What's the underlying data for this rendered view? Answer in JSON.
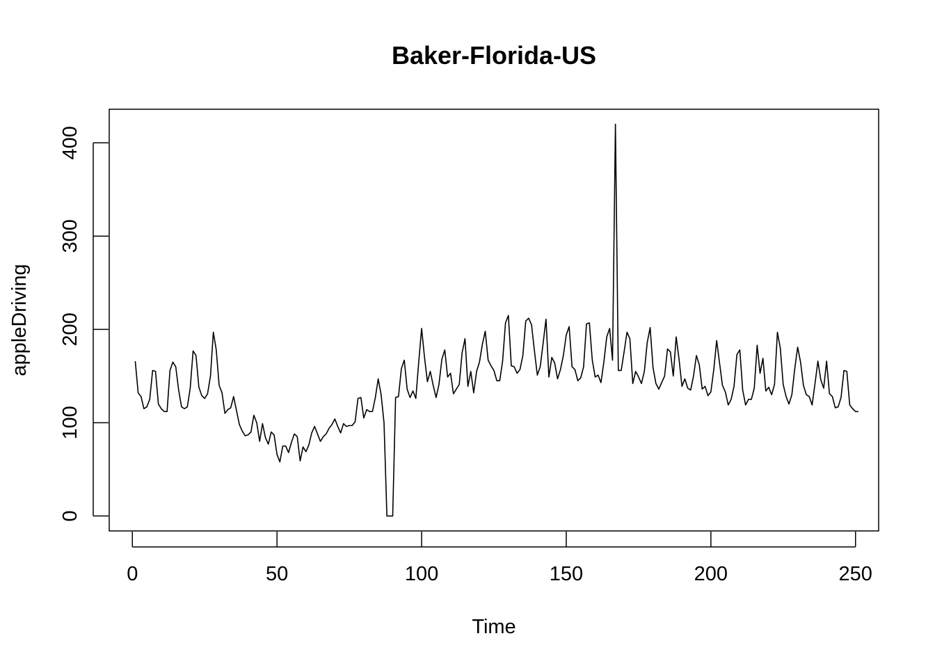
{
  "chart_data": {
    "type": "line",
    "title": "Baker-Florida-US",
    "xlabel": "Time",
    "ylabel": "appleDriving",
    "xlim": [
      -8,
      258
    ],
    "ylim": [
      -16,
      436
    ],
    "x_ticks": [
      0,
      50,
      100,
      150,
      200,
      250
    ],
    "y_ticks": [
      0,
      100,
      200,
      300,
      400
    ],
    "x_tick_labels": [
      "0",
      "50",
      "100",
      "150",
      "200",
      "250"
    ],
    "y_tick_labels": [
      "0",
      "100",
      "200",
      "300",
      "400"
    ],
    "grid": false,
    "series": [
      {
        "x_start": 1,
        "x_step": 1,
        "color": "#000000",
        "values": [
          166,
          132,
          128,
          115,
          117,
          125,
          156,
          155,
          120,
          115,
          112,
          112,
          156,
          165,
          160,
          135,
          117,
          115,
          117,
          137,
          177,
          172,
          138,
          129,
          126,
          131,
          150,
          197,
          178,
          140,
          132,
          110,
          114,
          116,
          128,
          113,
          98,
          91,
          86,
          87,
          90,
          108,
          100,
          80,
          99,
          84,
          77,
          90,
          87,
          66,
          58,
          75,
          75,
          68,
          79,
          88,
          85,
          59,
          74,
          69,
          76,
          89,
          96,
          88,
          80,
          85,
          88,
          94,
          98,
          104,
          96,
          89,
          99,
          96,
          97,
          97,
          101,
          126,
          127,
          105,
          114,
          112,
          112,
          127,
          147,
          130,
          100,
          0,
          0,
          0,
          127,
          128,
          158,
          167,
          136,
          127,
          134,
          126,
          165,
          201,
          170,
          144,
          155,
          140,
          127,
          141,
          168,
          178,
          149,
          153,
          131,
          136,
          141,
          175,
          190,
          139,
          155,
          132,
          155,
          165,
          184,
          198,
          167,
          161,
          156,
          145,
          145,
          166,
          207,
          215,
          161,
          160,
          153,
          157,
          172,
          209,
          212,
          205,
          177,
          151,
          160,
          185,
          211,
          149,
          170,
          164,
          147,
          157,
          172,
          194,
          203,
          160,
          157,
          145,
          148,
          160,
          206,
          207,
          167,
          149,
          151,
          143,
          165,
          192,
          201,
          167,
          420,
          156,
          156,
          176,
          197,
          190,
          142,
          155,
          149,
          142,
          155,
          186,
          202,
          159,
          142,
          136,
          143,
          150,
          179,
          176,
          150,
          192,
          168,
          139,
          147,
          137,
          135,
          150,
          172,
          162,
          136,
          139,
          129,
          133,
          157,
          188,
          164,
          140,
          133,
          119,
          125,
          139,
          173,
          178,
          135,
          119,
          125,
          125,
          137,
          183,
          153,
          169,
          134,
          138,
          130,
          141,
          197,
          180,
          141,
          128,
          120,
          130,
          158,
          181,
          165,
          140,
          130,
          128,
          119,
          142,
          166,
          146,
          137,
          166,
          131,
          128,
          116,
          117,
          127,
          156,
          155,
          119,
          115,
          112,
          112
        ]
      }
    ]
  }
}
